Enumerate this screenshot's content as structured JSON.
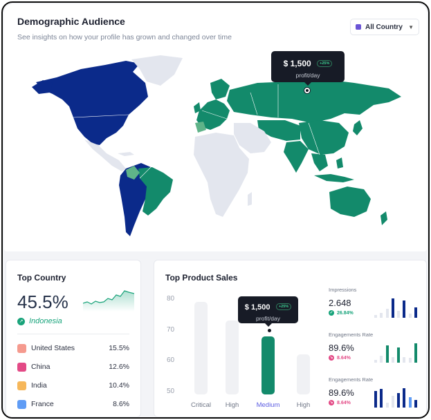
{
  "header": {
    "title": "Demographic Audience",
    "subtitle": "See insights on how your profile has grown and changed over time",
    "filter_label": "All Country",
    "filter_color": "#6b55d6"
  },
  "map": {
    "colors": {
      "ocean": "#ffffff",
      "other": "#e3e6ee",
      "primary": "#0b2a8a",
      "secondary": "#138a6b",
      "accent": "#5fb389"
    },
    "tooltip": {
      "value": "$ 1,500",
      "badge": "+25%",
      "label": "profit/day"
    }
  },
  "top_country": {
    "title": "Top Country",
    "percent": "45.5%",
    "country": "Indonesia",
    "trend_icon": "trending-up-icon",
    "items": [
      {
        "name": "United States",
        "pct": "15.5%",
        "color": "#f59a8e"
      },
      {
        "name": "China",
        "pct": "12.6%",
        "color": "#e34a86"
      },
      {
        "name": "India",
        "pct": "10.4%",
        "color": "#f6b75a"
      },
      {
        "name": "France",
        "pct": "8.6%",
        "color": "#5f9cf5"
      }
    ]
  },
  "top_product": {
    "title": "Top Product Sales",
    "tooltip": {
      "value": "$ 1,500",
      "badge": "+25%",
      "label": "profit/day"
    },
    "chart_data": {
      "type": "bar",
      "categories": [
        "Critical",
        "High",
        "Medium",
        "High"
      ],
      "values": [
        79,
        73,
        68,
        62
      ],
      "highlight_index": 2,
      "ylim": [
        50,
        80
      ],
      "yticks": [
        "80",
        "70",
        "60",
        "50"
      ]
    },
    "metrics": [
      {
        "label": "Impressions",
        "value": "2.648",
        "change": "26.84%",
        "direction": "up",
        "color": "#16a37a"
      },
      {
        "label": "Engagements Rate",
        "value": "89.6%",
        "change": "8.64%",
        "direction": "down",
        "color": "#e34a86"
      },
      {
        "label": "Engagements Rate",
        "value": "89.6%",
        "change": "8.64%",
        "direction": "down",
        "color": "#e34a86"
      }
    ]
  }
}
